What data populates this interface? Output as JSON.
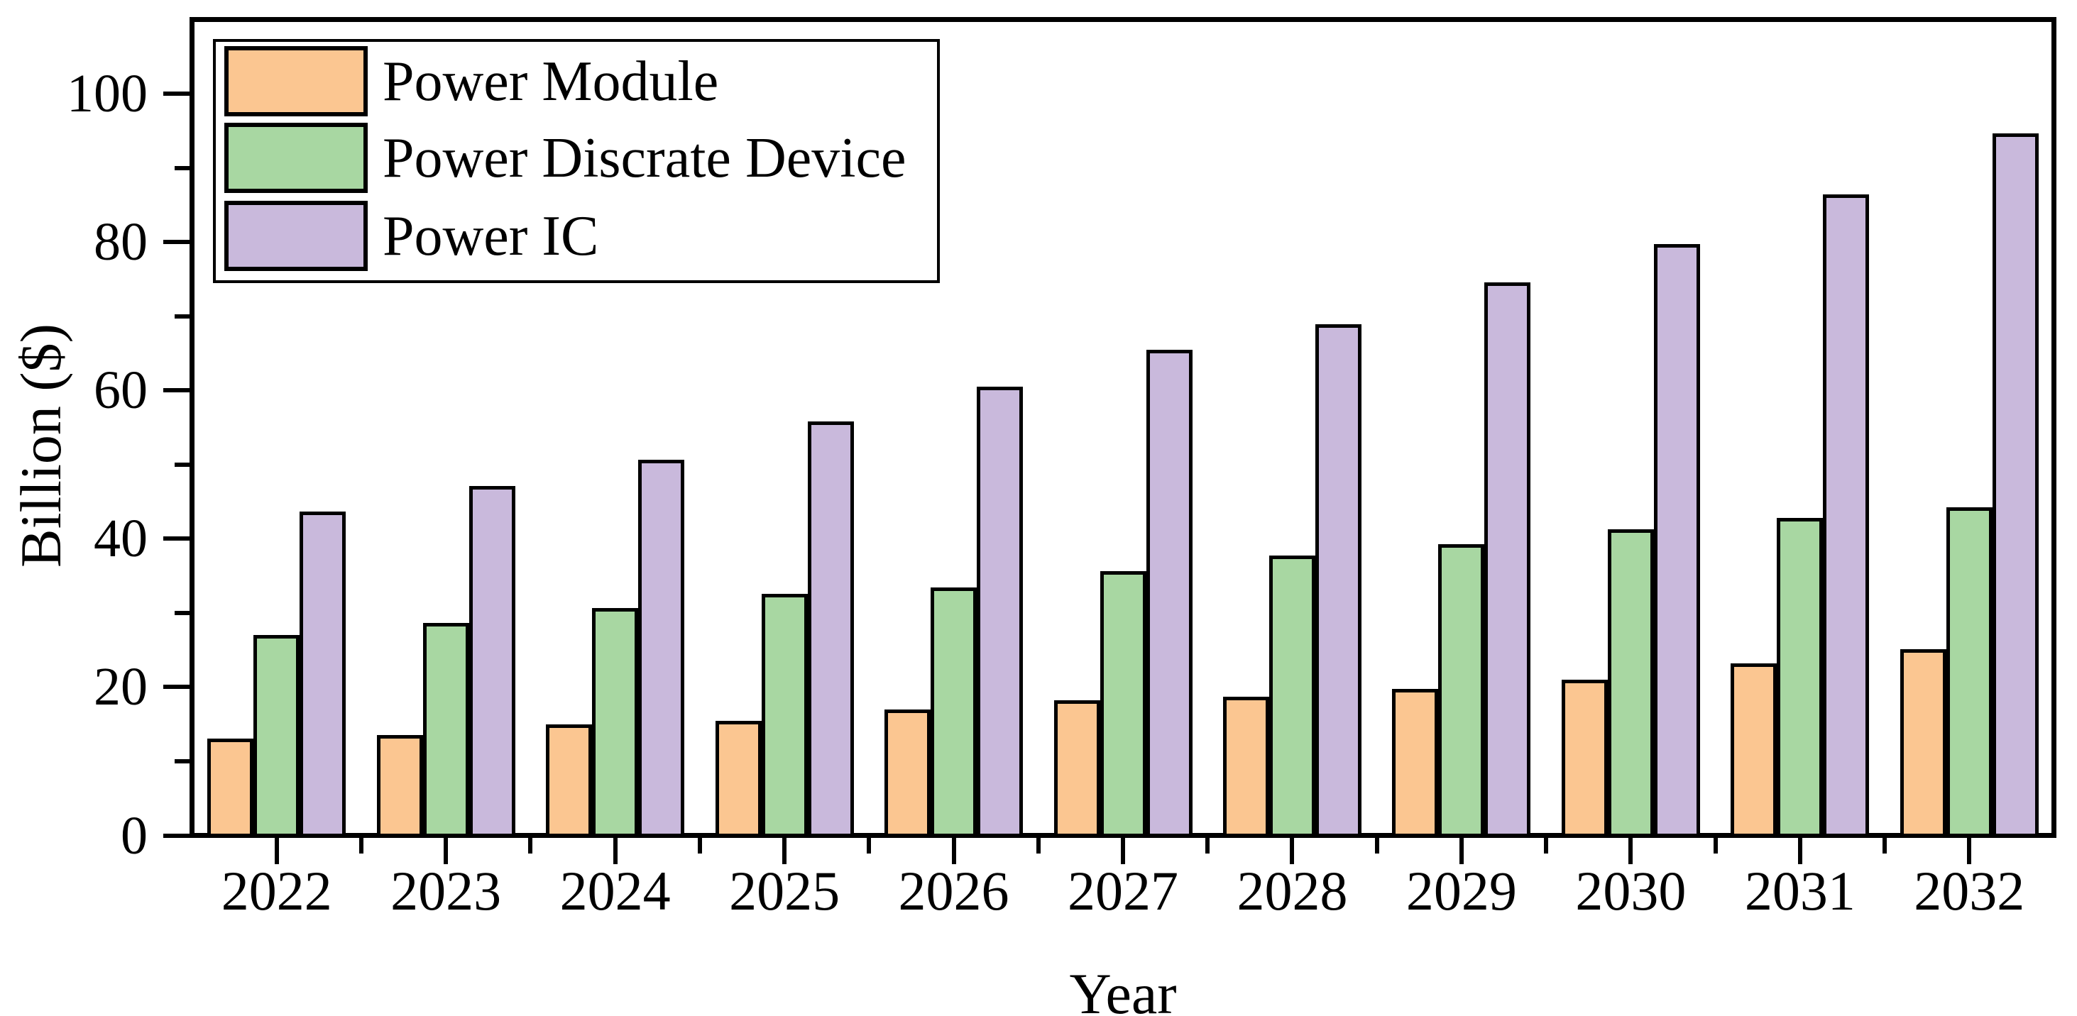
{
  "figure": {
    "background": "#ffffff",
    "text_color": "#000000",
    "axis_color": "#000000"
  },
  "chart_data": {
    "type": "bar",
    "title": "",
    "xlabel": "Year",
    "ylabel": "Billion ($)",
    "categories": [
      "2022",
      "2023",
      "2024",
      "2025",
      "2026",
      "2027",
      "2028",
      "2029",
      "2030",
      "2031",
      "2032"
    ],
    "series": [
      {
        "name": "Power Module",
        "color": "#FBC691",
        "values": [
          12.8,
          13.3,
          14.7,
          15.2,
          16.7,
          18.0,
          18.5,
          19.5,
          20.8,
          23.0,
          24.9
        ]
      },
      {
        "name": "Power Discrate Device",
        "color": "#A8D7A2",
        "values": [
          26.8,
          28.4,
          30.4,
          32.3,
          33.2,
          35.4,
          37.5,
          39.0,
          41.0,
          42.6,
          44.0
        ]
      },
      {
        "name": "Power IC",
        "color": "#C9B9DC",
        "values": [
          43.4,
          46.9,
          50.4,
          55.6,
          60.3,
          65.2,
          68.7,
          74.3,
          79.5,
          86.2,
          94.4
        ]
      }
    ],
    "ylim": [
      0,
      110
    ],
    "yticks": [
      0,
      20,
      40,
      60,
      80,
      100
    ],
    "yticks_minor": [
      10,
      30,
      50,
      70,
      90
    ],
    "bar_border_color": "#000000",
    "legend_position": "top-left",
    "legend_border_color": "#000000",
    "grid": false
  }
}
